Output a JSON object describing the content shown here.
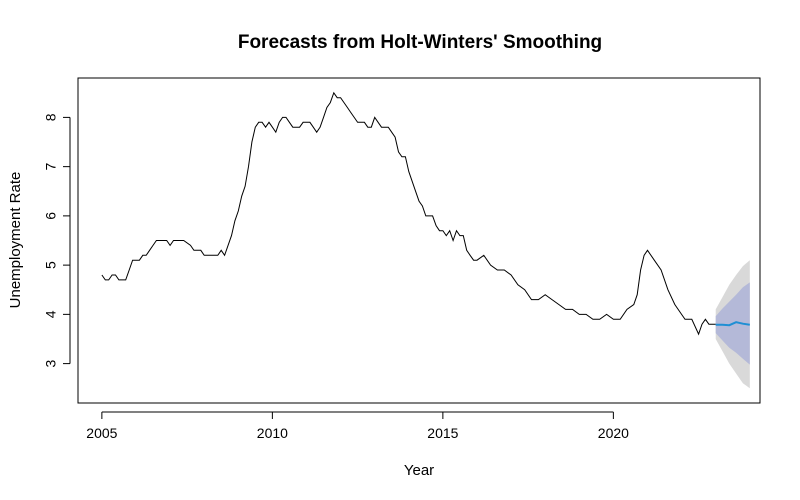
{
  "chart_data": {
    "type": "line",
    "title": "Forecasts from Holt-Winters' Smoothing",
    "xlabel": "Year",
    "ylabel": "Unemployment Rate",
    "xlim": [
      2004.3,
      2024.3
    ],
    "ylim": [
      2.2,
      8.8
    ],
    "x_ticks": [
      2005,
      2010,
      2015,
      2020
    ],
    "y_ticks": [
      3,
      4,
      5,
      6,
      7,
      8
    ],
    "grid": false,
    "legend": "none",
    "colors": {
      "history": "#000000",
      "forecast": "#1f8fd4",
      "band_80": "#b4b9d8",
      "band_95": "#d9d9d9"
    },
    "history": {
      "x": [
        2005.0,
        2005.1,
        2005.2,
        2005.3,
        2005.4,
        2005.5,
        2005.6,
        2005.7,
        2005.8,
        2005.9,
        2006.0,
        2006.1,
        2006.2,
        2006.3,
        2006.4,
        2006.5,
        2006.6,
        2006.7,
        2006.8,
        2006.9,
        2007.0,
        2007.1,
        2007.2,
        2007.4,
        2007.6,
        2007.7,
        2007.9,
        2008.0,
        2008.2,
        2008.4,
        2008.5,
        2008.6,
        2008.8,
        2008.9,
        2009.0,
        2009.1,
        2009.2,
        2009.3,
        2009.4,
        2009.5,
        2009.6,
        2009.7,
        2009.8,
        2009.9,
        2010.0,
        2010.1,
        2010.2,
        2010.3,
        2010.4,
        2010.5,
        2010.6,
        2010.7,
        2010.8,
        2010.9,
        2011.0,
        2011.1,
        2011.2,
        2011.3,
        2011.4,
        2011.5,
        2011.6,
        2011.7,
        2011.8,
        2011.9,
        2012.0,
        2012.1,
        2012.2,
        2012.3,
        2012.4,
        2012.5,
        2012.6,
        2012.7,
        2012.8,
        2012.9,
        2013.0,
        2013.1,
        2013.2,
        2013.3,
        2013.4,
        2013.5,
        2013.6,
        2013.7,
        2013.8,
        2013.9,
        2014.0,
        2014.1,
        2014.2,
        2014.3,
        2014.4,
        2014.5,
        2014.6,
        2014.7,
        2014.8,
        2014.9,
        2015.0,
        2015.1,
        2015.2,
        2015.3,
        2015.4,
        2015.5,
        2015.6,
        2015.7,
        2015.8,
        2015.9,
        2016.0,
        2016.2,
        2016.4,
        2016.6,
        2016.8,
        2017.0,
        2017.2,
        2017.4,
        2017.6,
        2017.8,
        2018.0,
        2018.2,
        2018.4,
        2018.6,
        2018.8,
        2019.0,
        2019.2,
        2019.4,
        2019.6,
        2019.8,
        2020.0,
        2020.2,
        2020.4,
        2020.6,
        2020.7,
        2020.8,
        2020.9,
        2021.0,
        2021.2,
        2021.4,
        2021.6,
        2021.8,
        2022.0,
        2022.1,
        2022.3,
        2022.5,
        2022.6,
        2022.7,
        2022.8,
        2022.9,
        2023.0
      ],
      "y": [
        4.8,
        4.7,
        4.7,
        4.8,
        4.8,
        4.7,
        4.7,
        4.7,
        4.9,
        5.1,
        5.1,
        5.1,
        5.2,
        5.2,
        5.3,
        5.4,
        5.5,
        5.5,
        5.5,
        5.5,
        5.4,
        5.5,
        5.5,
        5.5,
        5.4,
        5.3,
        5.3,
        5.2,
        5.2,
        5.2,
        5.3,
        5.2,
        5.6,
        5.9,
        6.1,
        6.4,
        6.6,
        7.0,
        7.5,
        7.8,
        7.9,
        7.9,
        7.8,
        7.9,
        7.8,
        7.7,
        7.9,
        8.0,
        8.0,
        7.9,
        7.8,
        7.8,
        7.8,
        7.9,
        7.9,
        7.9,
        7.8,
        7.7,
        7.8,
        8.0,
        8.2,
        8.3,
        8.5,
        8.4,
        8.4,
        8.3,
        8.2,
        8.1,
        8.0,
        7.9,
        7.9,
        7.9,
        7.8,
        7.8,
        8.0,
        7.9,
        7.8,
        7.8,
        7.8,
        7.7,
        7.6,
        7.3,
        7.2,
        7.2,
        6.9,
        6.7,
        6.5,
        6.3,
        6.2,
        6.0,
        6.0,
        6.0,
        5.8,
        5.7,
        5.7,
        5.6,
        5.7,
        5.5,
        5.7,
        5.6,
        5.6,
        5.3,
        5.2,
        5.1,
        5.1,
        5.2,
        5.0,
        4.9,
        4.9,
        4.8,
        4.6,
        4.5,
        4.3,
        4.3,
        4.4,
        4.3,
        4.2,
        4.1,
        4.1,
        4.0,
        4.0,
        3.9,
        3.9,
        4.0,
        3.9,
        3.9,
        4.1,
        4.2,
        4.4,
        4.9,
        5.2,
        5.3,
        5.1,
        4.9,
        4.5,
        4.2,
        4.0,
        3.9,
        3.9,
        3.6,
        3.8,
        3.9,
        3.8,
        3.8,
        3.8
      ]
    },
    "forecast": {
      "x": [
        2023.0,
        2023.2,
        2023.4,
        2023.6,
        2023.8,
        2024.0
      ],
      "mean": [
        3.79,
        3.79,
        3.78,
        3.84,
        3.81,
        3.79
      ],
      "lo80": [
        3.62,
        3.47,
        3.32,
        3.22,
        3.1,
        2.98
      ],
      "hi80": [
        3.96,
        4.12,
        4.26,
        4.4,
        4.55,
        4.65
      ],
      "lo95": [
        3.5,
        3.25,
        3.0,
        2.8,
        2.6,
        2.5
      ],
      "hi95": [
        4.1,
        4.35,
        4.6,
        4.8,
        4.98,
        5.1
      ]
    }
  }
}
